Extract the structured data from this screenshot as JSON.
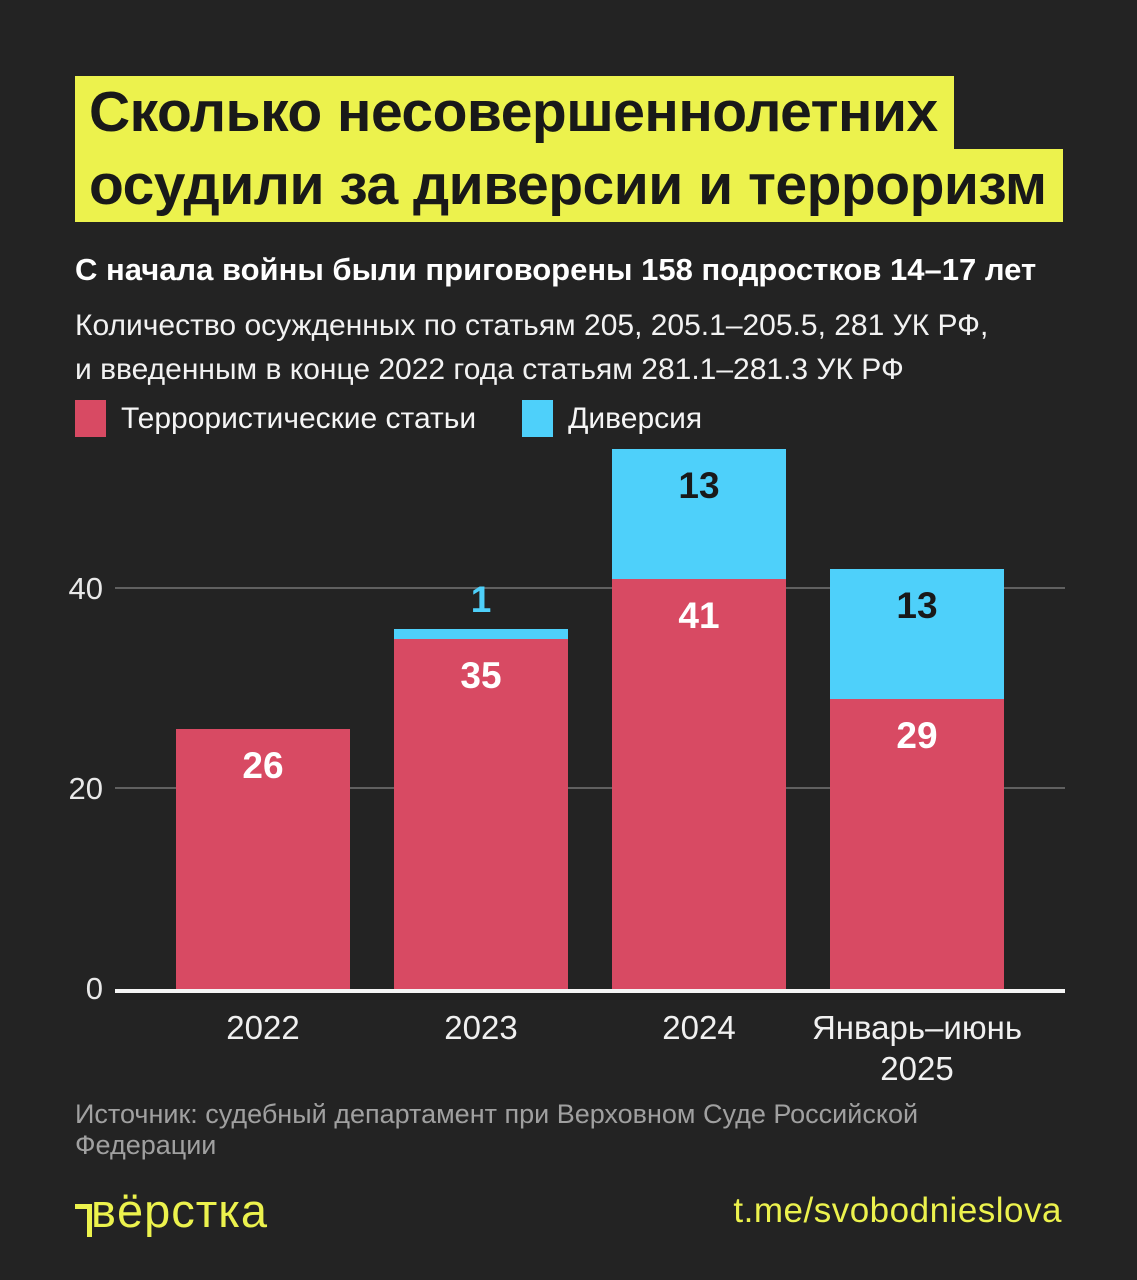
{
  "colors": {
    "background": "#232323",
    "accent_yellow": "#ecf24d",
    "bar_red": "#d84a63",
    "bar_blue": "#4ed0fa",
    "axis_line": "#f5f5f5",
    "source_text": "#a0a0a0"
  },
  "title": {
    "line1": "Сколько несовершеннолетних",
    "line2": "осудили за диверсии и терроризм"
  },
  "subtitle": "С начала войны были приговорены 158 подростков 14–17 лет",
  "description": {
    "line1": "Количество осужденных по статьям 205, 205.1–205.5, 281 УК РФ,",
    "line2": "и введенным в конце 2022 года статьям 281.1–281.3 УК РФ"
  },
  "chart_data": {
    "type": "bar",
    "stacked": true,
    "title": "Сколько несовершеннолетних осудили за диверсии и терроризм",
    "categories": [
      "2022",
      "2023",
      "2024",
      "Январь–июнь 2025"
    ],
    "series": [
      {
        "name": "Террористические статьи",
        "color": "#d84a63",
        "values": [
          26,
          35,
          41,
          29
        ]
      },
      {
        "name": "Диверсия",
        "color": "#4ed0fa",
        "values": [
          0,
          1,
          13,
          13
        ]
      }
    ],
    "totals": [
      26,
      36,
      54,
      42
    ],
    "yticks": [
      0,
      20,
      40
    ],
    "ylim": [
      0,
      55.6
    ],
    "xlabel": "",
    "ylabel": "",
    "grid": "horizontal",
    "legend_position": "top"
  },
  "footer": {
    "source": "Источник: судебный департамент при Верховном Суде Российской Федерации",
    "logo": "вёрстка",
    "link": "t.me/svobodnieslova"
  }
}
